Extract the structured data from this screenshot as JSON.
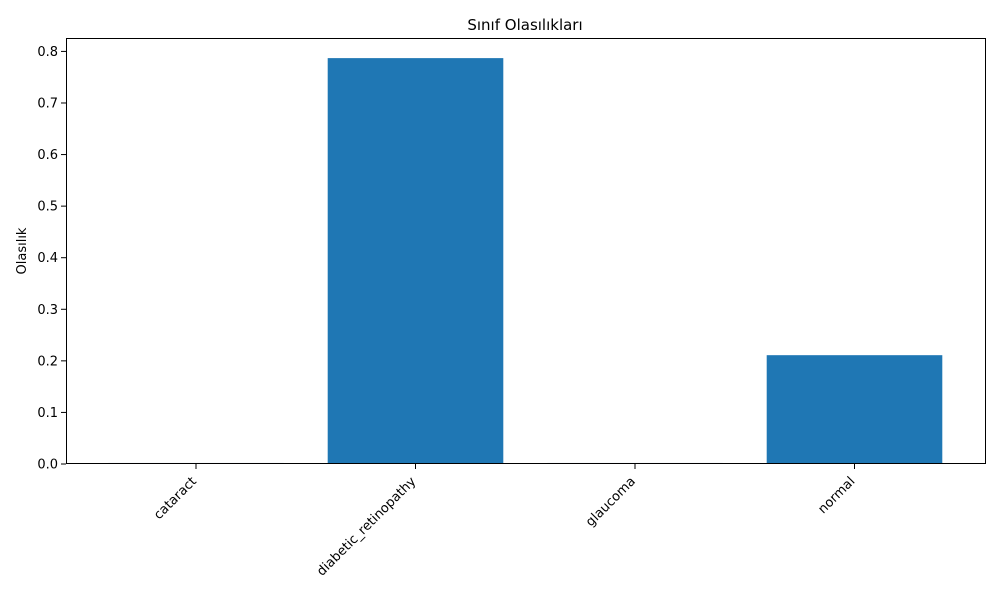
{
  "chart_data": {
    "type": "bar",
    "title": "Sınıf Olasılıkları",
    "xlabel": "",
    "ylabel": "Olasılık",
    "categories": [
      "cataract",
      "diabetic_retinopathy",
      "glaucoma",
      "normal"
    ],
    "values": [
      0.002,
      0.787,
      0.002,
      0.211
    ],
    "ylim": [
      0,
      0.826
    ],
    "yticks": [
      0.0,
      0.1,
      0.2,
      0.3,
      0.4,
      0.5,
      0.6,
      0.7,
      0.8
    ],
    "ytick_labels": [
      "0.0",
      "0.1",
      "0.2",
      "0.3",
      "0.4",
      "0.5",
      "0.6",
      "0.7",
      "0.8"
    ],
    "bar_color": "#1f77b4",
    "grid": false,
    "xtick_rotation": 45
  }
}
